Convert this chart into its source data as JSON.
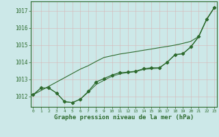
{
  "x": [
    0,
    1,
    2,
    3,
    4,
    5,
    6,
    7,
    8,
    9,
    10,
    11,
    12,
    13,
    14,
    15,
    16,
    17,
    18,
    19,
    20,
    21,
    22,
    23
  ],
  "y_main": [
    1012.1,
    1012.5,
    1012.5,
    1012.2,
    1011.7,
    1011.65,
    1011.85,
    1012.3,
    1012.85,
    1013.05,
    1013.25,
    1013.4,
    1013.42,
    1013.48,
    1013.62,
    1013.68,
    1013.68,
    1014.0,
    1014.45,
    1014.5,
    1014.9,
    1015.5,
    1016.5,
    1017.2
  ],
  "y_linear": [
    1012.1,
    1012.35,
    1012.6,
    1012.85,
    1013.1,
    1013.35,
    1013.6,
    1013.8,
    1014.05,
    1014.28,
    1014.38,
    1014.48,
    1014.55,
    1014.62,
    1014.7,
    1014.77,
    1014.85,
    1014.92,
    1015.0,
    1015.1,
    1015.22,
    1015.5,
    1016.5,
    1017.2
  ],
  "y_smooth": [
    1012.1,
    1012.5,
    1012.5,
    1012.2,
    1011.7,
    1011.65,
    1011.85,
    1012.25,
    1012.7,
    1012.95,
    1013.18,
    1013.32,
    1013.4,
    1013.45,
    1013.58,
    1013.62,
    1013.65,
    1014.0,
    1014.42,
    1014.5,
    1014.88,
    1015.48,
    1016.48,
    1017.2
  ],
  "bg_color": "#cce8e8",
  "line_color": "#2d6a2d",
  "ylabel_ticks": [
    1012,
    1013,
    1014,
    1015,
    1016,
    1017
  ],
  "xlabel": "Graphe pression niveau de la mer (hPa)",
  "ylim": [
    1011.4,
    1017.55
  ],
  "xlim": [
    -0.3,
    23.3
  ]
}
